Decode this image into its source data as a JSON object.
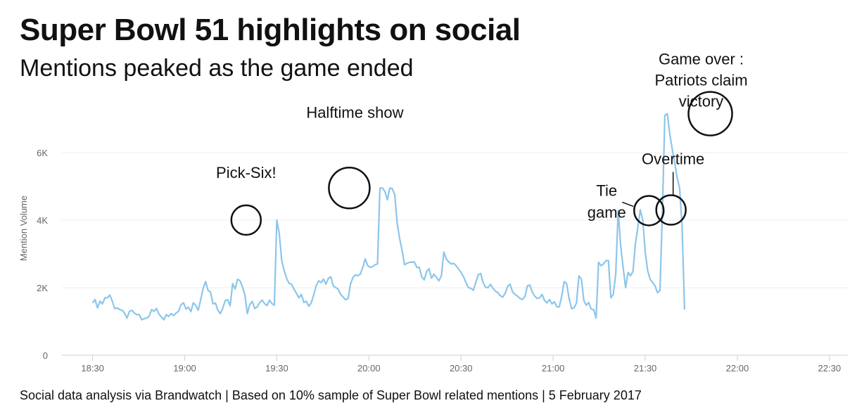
{
  "title": "Super Bowl 51 highlights on social",
  "subtitle": "Mentions peaked as the game ended",
  "footer": "Social data analysis via Brandwatch | Based on 10% sample of Super Bowl related mentions | 5 February 2017",
  "colors": {
    "line": "#8cc6ea",
    "grid": "#eeeeee",
    "axis": "#c8d0dc",
    "annotation": "#111111"
  },
  "chart_data": {
    "type": "line",
    "title": "Super Bowl 51 highlights on social",
    "subtitle": "Mentions peaked as the game ended",
    "xlabel": "",
    "ylabel": "Mention Volume",
    "x_range_minutes_after_midnight": [
      1100,
      1356
    ],
    "ylim": [
      0,
      7600
    ],
    "x_ticks": [
      {
        "t": 1110,
        "label": "18:30"
      },
      {
        "t": 1140,
        "label": "19:00"
      },
      {
        "t": 1170,
        "label": "19:30"
      },
      {
        "t": 1200,
        "label": "20:00"
      },
      {
        "t": 1230,
        "label": "20:30"
      },
      {
        "t": 1260,
        "label": "21:00"
      },
      {
        "t": 1290,
        "label": "21:30"
      },
      {
        "t": 1320,
        "label": "22:00"
      },
      {
        "t": 1350,
        "label": "22:30"
      }
    ],
    "y_ticks": [
      {
        "v": 0,
        "label": "0"
      },
      {
        "v": 2000,
        "label": "2K"
      },
      {
        "v": 4000,
        "label": "4K"
      },
      {
        "v": 6000,
        "label": "6K"
      }
    ],
    "grid": true,
    "legend": "none",
    "series": [
      {
        "interval_minutes": 0.8,
        "start_time": "18:30",
        "values": [
          1550,
          1650,
          1400,
          1600,
          1520,
          1700,
          1700,
          1780,
          1600,
          1380,
          1400,
          1350,
          1330,
          1250,
          1100,
          1300,
          1330,
          1250,
          1200,
          1200,
          1050,
          1080,
          1100,
          1150,
          1350,
          1300,
          1380,
          1220,
          1130,
          1050,
          1200,
          1150,
          1230,
          1170,
          1250,
          1300,
          1500,
          1550,
          1370,
          1420,
          1290,
          1550,
          1480,
          1330,
          1640,
          1970,
          2180,
          1920,
          1870,
          1520,
          1540,
          1330,
          1230,
          1390,
          1620,
          1640,
          1460,
          2120,
          1960,
          2250,
          2200,
          2020,
          1780,
          1230,
          1500,
          1590,
          1380,
          1430,
          1560,
          1630,
          1530,
          1470,
          1630,
          1530,
          1480,
          4000,
          3600,
          2800,
          2500,
          2270,
          2130,
          2100,
          1950,
          1830,
          1700,
          1800,
          1560,
          1600,
          1450,
          1550,
          1780,
          2050,
          2200,
          2150,
          2250,
          2100,
          2280,
          2320,
          2050,
          2000,
          1950,
          1800,
          1720,
          1640,
          1680,
          2100,
          2300,
          2380,
          2350,
          2400,
          2600,
          2850,
          2650,
          2600,
          2620,
          2680,
          2700,
          4950,
          4950,
          4850,
          4600,
          4950,
          4930,
          4750,
          3900,
          3450,
          3100,
          2680,
          2720,
          2750,
          2750,
          2760,
          2600,
          2600,
          2320,
          2230,
          2480,
          2560,
          2280,
          2400,
          2300,
          2200,
          2350,
          3050,
          2850,
          2760,
          2700,
          2720,
          2650,
          2550,
          2450,
          2330,
          2150,
          2000,
          1980,
          1920,
          2150,
          2380,
          2420,
          2150,
          2010,
          2000,
          2100,
          1980,
          1900,
          1850,
          1760,
          1720,
          1840,
          2040,
          2100,
          1870,
          1800,
          1750,
          1680,
          1650,
          1730,
          2050,
          2080,
          1870,
          1750,
          1680,
          1700,
          1800,
          1620,
          1550,
          1650,
          1520,
          1580,
          1430,
          1430,
          1750,
          2180,
          2120,
          1680,
          1380,
          1400,
          1550,
          2350,
          2250,
          1620,
          1480,
          1560,
          1370,
          1350,
          1100,
          2750,
          2650,
          2700,
          2800,
          2800,
          1700,
          1800,
          2400,
          4280,
          3250,
          2600,
          2000,
          2450,
          2350,
          2480,
          3300,
          3800,
          4300,
          4000,
          3050,
          2500,
          2250,
          2150,
          2050,
          1850,
          1920,
          4300,
          7100,
          7150,
          6550,
          6100,
          5700,
          5250,
          4950,
          3800,
          1350
        ]
      }
    ],
    "annotations": [
      {
        "label": "Pick-Six!",
        "t": 1160,
        "v": 4000
      },
      {
        "label": "Halftime show",
        "t": 1193.6,
        "v": 4950
      },
      {
        "label": "Tie game",
        "t": 1291.2,
        "v": 4280
      },
      {
        "label": "Overtime",
        "t": 1298.4,
        "v": 4300
      },
      {
        "label": "Game over : Patriots claim victory",
        "t": 1311.2,
        "v": 7150
      }
    ]
  }
}
